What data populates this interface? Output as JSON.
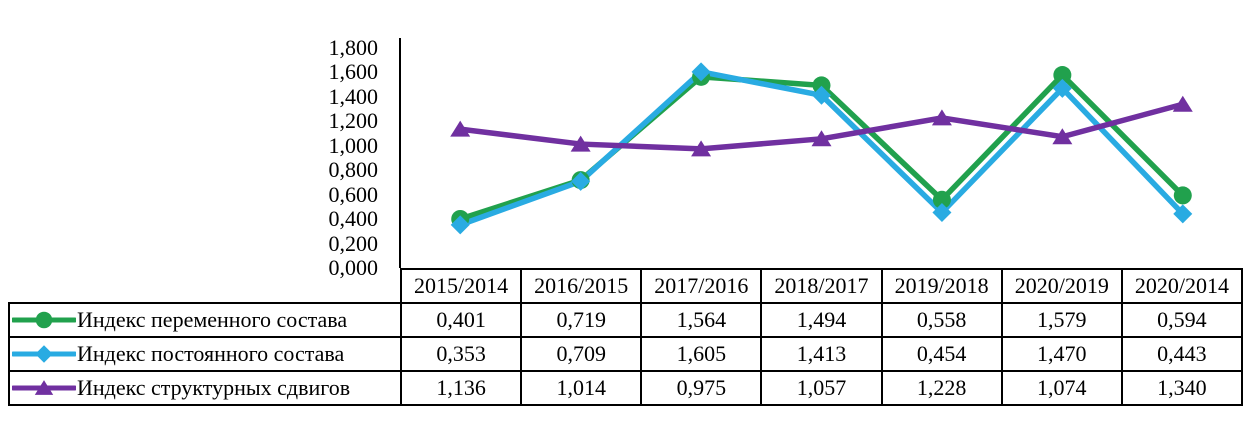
{
  "chart_data": {
    "type": "line",
    "categories": [
      "2015/2014",
      "2016/2015",
      "2017/2016",
      "2018/2017",
      "2019/2018",
      "2020/2019",
      "2020/2014"
    ],
    "series": [
      {
        "name": "Индекс переменного состава",
        "marker": "circle",
        "color": "#21A14D",
        "values": [
          "0,401",
          "0,719",
          "1,564",
          "1,494",
          "0,558",
          "1,579",
          "0,594"
        ]
      },
      {
        "name": "Индекс постоянного состава",
        "marker": "diamond",
        "color": "#29ABE2",
        "values": [
          "0,353",
          "0,709",
          "1,605",
          "1,413",
          "0,454",
          "1,470",
          "0,443"
        ]
      },
      {
        "name": "Индекс структурных сдвигов",
        "marker": "triangle",
        "color": "#7030A0",
        "values": [
          "1,136",
          "1,014",
          "0,975",
          "1,057",
          "1,228",
          "1,074",
          "1,340"
        ]
      }
    ],
    "y_axis": {
      "min": 0,
      "max": 1.8,
      "step": 0.2,
      "tick_labels": [
        "1,800",
        "1,600",
        "1,400",
        "1,200",
        "1,000",
        "0,800",
        "0,600",
        "0,400",
        "0,200",
        "0,000"
      ],
      "decimal_separator": ","
    },
    "grid": false,
    "legend_position": "table-left",
    "axis_color": "#000000",
    "table_border_color": "#000000"
  }
}
